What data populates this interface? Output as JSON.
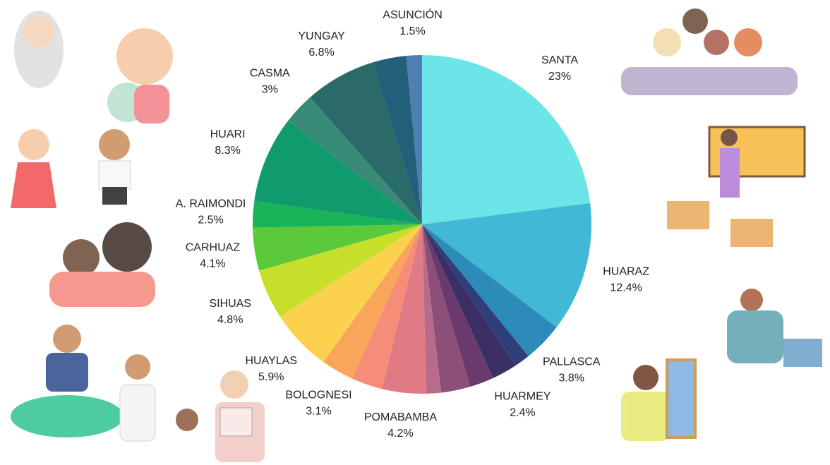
{
  "chart_data": {
    "type": "pie",
    "categories": [
      "SANTA",
      "HUARAZ",
      "PALLASCA",
      null,
      "HUARMEY",
      null,
      null,
      null,
      "POMABAMBA",
      null,
      "BOLOGNESI",
      "HUAYLAS",
      "SIHUAS",
      "CARHUAZ",
      "A. RAIMONDI",
      "HUARI",
      "CASMA",
      "YUNGAY",
      null,
      "ASUNCIÓN"
    ],
    "values": [
      23,
      12.4,
      3.8,
      1.5,
      2.4,
      2.3,
      2.8,
      1.4,
      4.2,
      3.0,
      3.1,
      5.9,
      4.8,
      4.1,
      2.5,
      8.3,
      3,
      6.8,
      3.2,
      1.5
    ],
    "value_labels": [
      "23%",
      "12.4%",
      "3.8%",
      null,
      "2.4%",
      null,
      null,
      null,
      "4.2%",
      null,
      "3.1%",
      "5.9%",
      "4.8%",
      "4.1%",
      "2.5%",
      "8.3%",
      "3%",
      "6.8%",
      null,
      "1.5%"
    ],
    "colors": [
      "#6ce5e8",
      "#41b8d5",
      "#2d8bba",
      "#2f3f7a",
      "#3b2f66",
      "#6a3a6e",
      "#8c4f78",
      "#b86b8a",
      "#e07a85",
      "#f58d79",
      "#f9a65a",
      "#fbd24e",
      "#c7df2a",
      "#5cc93a",
      "#19b35a",
      "#0f9b6e",
      "#3a8a78",
      "#2a6b6a",
      "#22607a",
      "#4e7fae"
    ]
  }
}
